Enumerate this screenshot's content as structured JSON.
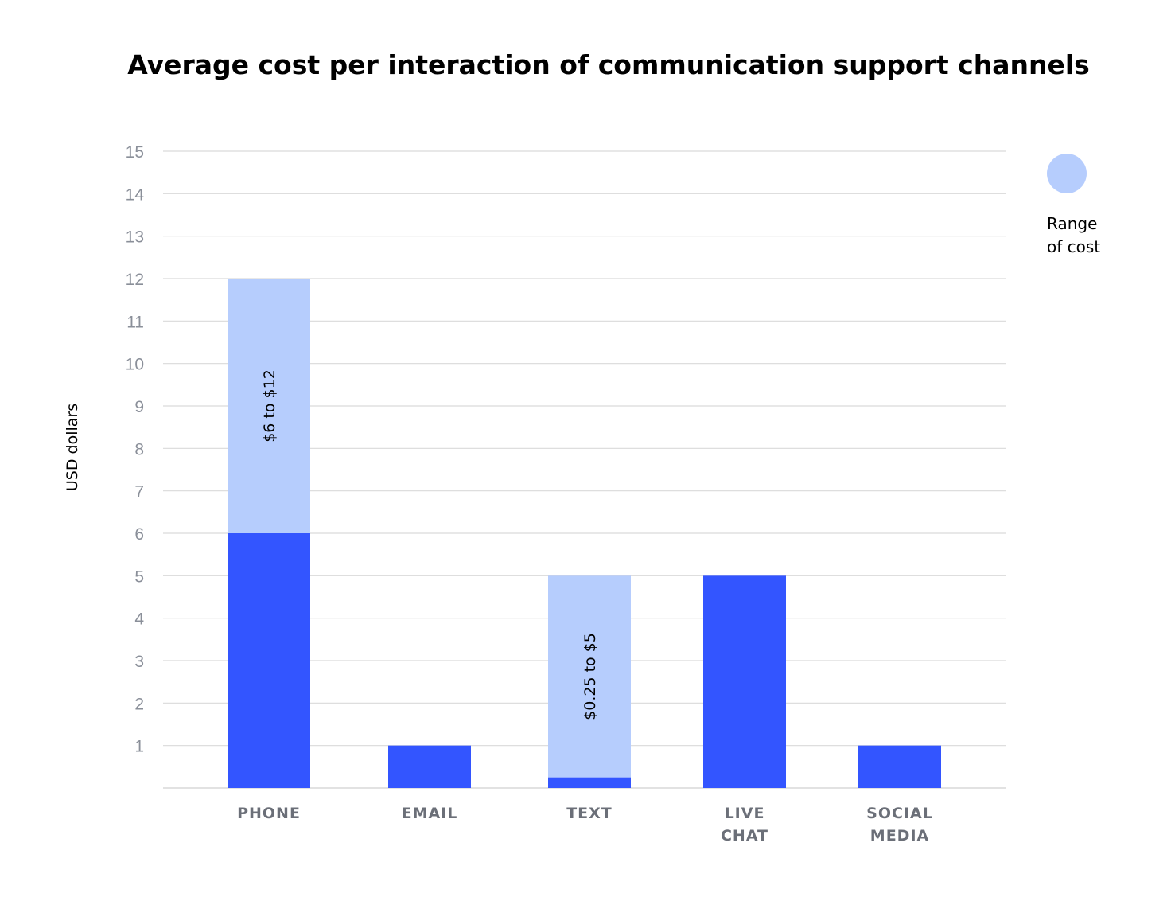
{
  "chart_data": {
    "type": "bar",
    "title": "Average cost per interaction of communication support channels",
    "ylabel": "USD dollars",
    "xlabel": "",
    "ylim": [
      0,
      15
    ],
    "yticks": [
      1,
      2,
      3,
      4,
      5,
      6,
      7,
      8,
      9,
      10,
      11,
      12,
      13,
      14,
      15
    ],
    "grid": true,
    "legend_position": "top-right",
    "legend": [
      {
        "lines": [
          "Range",
          "of cost"
        ],
        "color": "#b6cdfd"
      }
    ],
    "categories": [
      [
        "PHONE"
      ],
      [
        "EMAIL"
      ],
      [
        "TEXT"
      ],
      [
        "LIVE",
        "CHAT"
      ],
      [
        "SOCIAL",
        "MEDIA"
      ]
    ],
    "base_values": [
      6,
      1,
      0.25,
      5,
      1
    ],
    "range_top_values": [
      12,
      null,
      5,
      null,
      null
    ],
    "range_labels": [
      "$6 to $12",
      "",
      "$0.25 to $5",
      "",
      ""
    ],
    "colors": {
      "base": "#3355ff",
      "range": "#b6cdfd",
      "grid": "#d9d9d9"
    }
  }
}
